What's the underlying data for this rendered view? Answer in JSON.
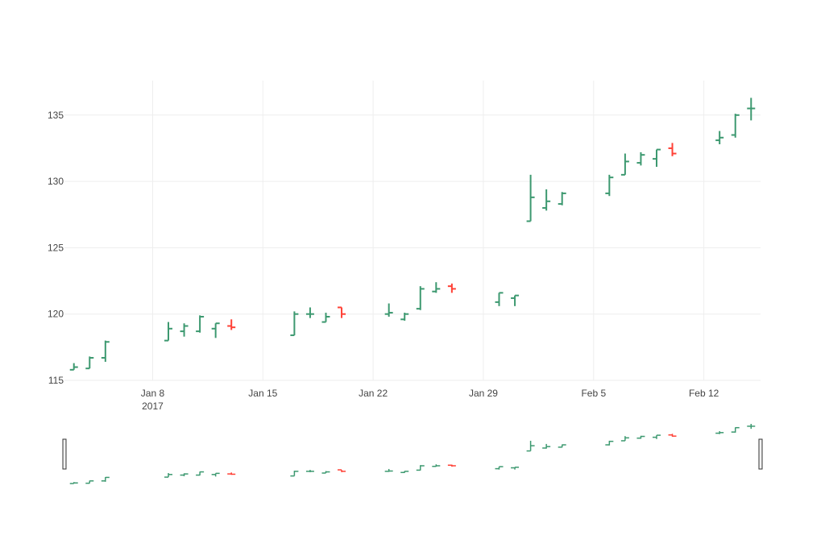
{
  "chart_data": {
    "type": "ohlc",
    "title": "",
    "xlabel": "",
    "ylabel": "",
    "ylim": [
      115,
      137.6
    ],
    "yticks": [
      115,
      120,
      125,
      130,
      135
    ],
    "xrange": [
      "2017-01-03",
      "2017-02-15"
    ],
    "xticks": [
      {
        "date": "2017-01-08",
        "label": "Jan 8",
        "sublabel": "2017"
      },
      {
        "date": "2017-01-15",
        "label": "Jan 15",
        "sublabel": ""
      },
      {
        "date": "2017-01-22",
        "label": "Jan 22",
        "sublabel": ""
      },
      {
        "date": "2017-01-29",
        "label": "Jan 29",
        "sublabel": ""
      },
      {
        "date": "2017-02-05",
        "label": "Feb 5",
        "sublabel": ""
      },
      {
        "date": "2017-02-12",
        "label": "Feb 12",
        "sublabel": ""
      }
    ],
    "grid": true,
    "rangeslider": true,
    "colors": {
      "increasing": "#3D9970",
      "decreasing": "#FF4136",
      "grid": "#eeeeee",
      "tick_text": "#444444"
    },
    "data": [
      {
        "date": "2017-01-03",
        "open": 115.8,
        "high": 116.3,
        "low": 115.8,
        "close": 116.0
      },
      {
        "date": "2017-01-04",
        "open": 115.9,
        "high": 116.8,
        "low": 115.9,
        "close": 116.7
      },
      {
        "date": "2017-01-05",
        "open": 116.7,
        "high": 118.0,
        "low": 116.4,
        "close": 117.9
      },
      {
        "date": "2017-01-09",
        "open": 118.0,
        "high": 119.4,
        "low": 118.0,
        "close": 118.9
      },
      {
        "date": "2017-01-10",
        "open": 118.7,
        "high": 119.3,
        "low": 118.3,
        "close": 119.1
      },
      {
        "date": "2017-01-11",
        "open": 118.7,
        "high": 119.9,
        "low": 118.6,
        "close": 119.8
      },
      {
        "date": "2017-01-12",
        "open": 118.9,
        "high": 119.3,
        "low": 118.2,
        "close": 119.3
      },
      {
        "date": "2017-01-13",
        "open": 119.1,
        "high": 119.6,
        "low": 118.8,
        "close": 119.0
      },
      {
        "date": "2017-01-17",
        "open": 118.4,
        "high": 120.2,
        "low": 118.4,
        "close": 120.0
      },
      {
        "date": "2017-01-18",
        "open": 120.0,
        "high": 120.5,
        "low": 119.7,
        "close": 120.0
      },
      {
        "date": "2017-01-19",
        "open": 119.4,
        "high": 120.1,
        "low": 119.4,
        "close": 119.8
      },
      {
        "date": "2017-01-20",
        "open": 120.5,
        "high": 120.5,
        "low": 119.7,
        "close": 120.0
      },
      {
        "date": "2017-01-23",
        "open": 120.0,
        "high": 120.8,
        "low": 119.8,
        "close": 120.1
      },
      {
        "date": "2017-01-24",
        "open": 119.6,
        "high": 120.1,
        "low": 119.5,
        "close": 120.0
      },
      {
        "date": "2017-01-25",
        "open": 120.4,
        "high": 122.1,
        "low": 120.3,
        "close": 121.9
      },
      {
        "date": "2017-01-26",
        "open": 121.7,
        "high": 122.4,
        "low": 121.6,
        "close": 121.9
      },
      {
        "date": "2017-01-27",
        "open": 122.1,
        "high": 122.3,
        "low": 121.6,
        "close": 121.9
      },
      {
        "date": "2017-01-30",
        "open": 120.9,
        "high": 121.6,
        "low": 120.6,
        "close": 121.6
      },
      {
        "date": "2017-01-31",
        "open": 121.2,
        "high": 121.4,
        "low": 120.6,
        "close": 121.4
      },
      {
        "date": "2017-02-01",
        "open": 127.0,
        "high": 130.5,
        "low": 127.0,
        "close": 128.8
      },
      {
        "date": "2017-02-02",
        "open": 128.0,
        "high": 129.4,
        "low": 127.8,
        "close": 128.5
      },
      {
        "date": "2017-02-03",
        "open": 128.3,
        "high": 129.2,
        "low": 128.2,
        "close": 129.1
      },
      {
        "date": "2017-02-06",
        "open": 129.1,
        "high": 130.5,
        "low": 128.9,
        "close": 130.3
      },
      {
        "date": "2017-02-07",
        "open": 130.5,
        "high": 132.1,
        "low": 130.5,
        "close": 131.5
      },
      {
        "date": "2017-02-08",
        "open": 131.4,
        "high": 132.2,
        "low": 131.2,
        "close": 132.0
      },
      {
        "date": "2017-02-09",
        "open": 131.7,
        "high": 132.4,
        "low": 131.1,
        "close": 132.4
      },
      {
        "date": "2017-02-10",
        "open": 132.5,
        "high": 132.9,
        "low": 131.9,
        "close": 132.1
      },
      {
        "date": "2017-02-13",
        "open": 133.1,
        "high": 133.8,
        "low": 132.8,
        "close": 133.3
      },
      {
        "date": "2017-02-14",
        "open": 133.5,
        "high": 135.1,
        "low": 133.3,
        "close": 135.0
      },
      {
        "date": "2017-02-15",
        "open": 135.5,
        "high": 136.3,
        "low": 134.6,
        "close": 135.5
      }
    ]
  }
}
